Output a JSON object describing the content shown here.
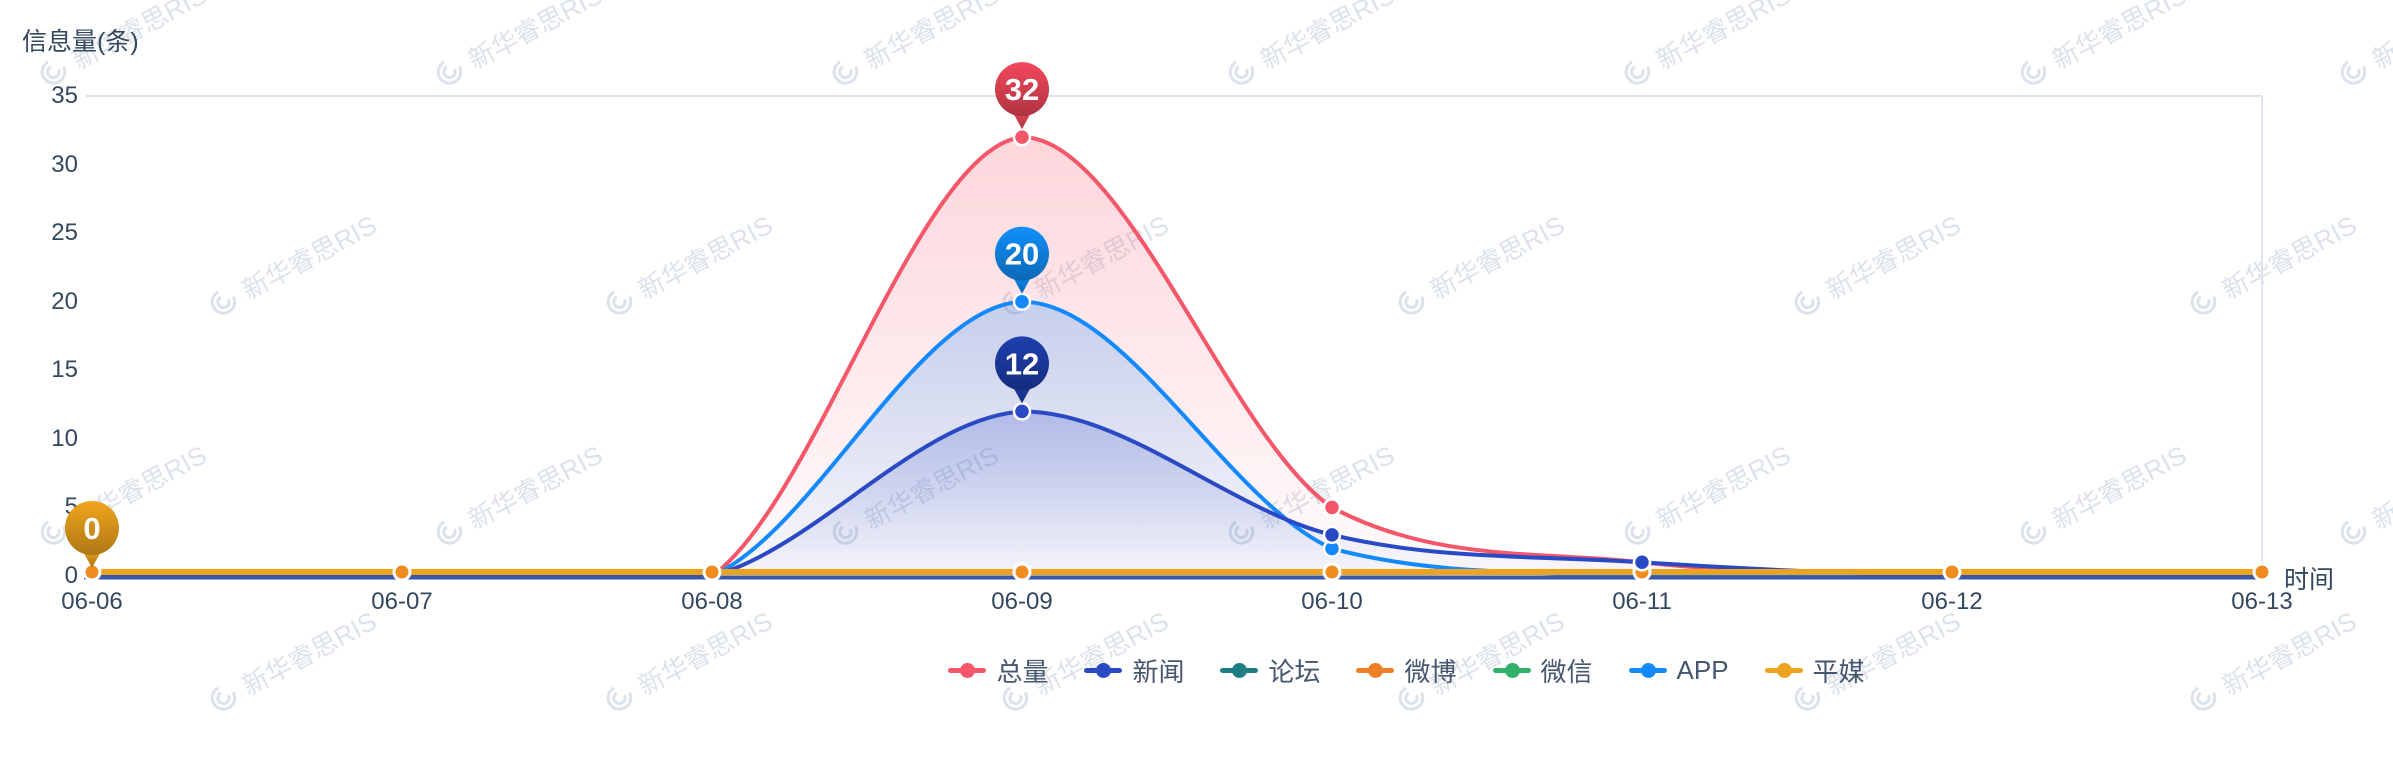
{
  "chart_data": {
    "type": "line",
    "title": "",
    "ylabel": "信息量(条)",
    "xlabel": "时间",
    "categories": [
      "06-06",
      "06-07",
      "06-08",
      "06-09",
      "06-10",
      "06-11",
      "06-12",
      "06-13"
    ],
    "ylim": [
      0,
      35
    ],
    "yticks": [
      0,
      5,
      10,
      15,
      20,
      25,
      30,
      35
    ],
    "grid": false,
    "smooth": true,
    "legend_position": "bottom",
    "series": [
      {
        "name": "总量",
        "color": "#f4566a",
        "area": true,
        "values": [
          0,
          0,
          0,
          32,
          5,
          1,
          0,
          0
        ]
      },
      {
        "name": "新闻",
        "color": "#2a49c4",
        "area": true,
        "values": [
          0,
          0,
          0,
          12,
          3,
          1,
          0,
          0
        ]
      },
      {
        "name": "论坛",
        "color": "#1d7e83",
        "area": false,
        "values": [
          0,
          0,
          0,
          0,
          0,
          0,
          0,
          0
        ]
      },
      {
        "name": "微博",
        "color": "#ee7f24",
        "area": false,
        "values": [
          0,
          0,
          0,
          0,
          0,
          0,
          0,
          0
        ]
      },
      {
        "name": "微信",
        "color": "#32b16c",
        "area": false,
        "values": [
          0,
          0,
          0,
          0,
          0,
          0,
          0,
          0
        ]
      },
      {
        "name": "APP",
        "color": "#1389fb",
        "area": true,
        "values": [
          0,
          0,
          0,
          20,
          2,
          0,
          0,
          0
        ]
      },
      {
        "name": "平媒",
        "color": "#eda31f",
        "area": false,
        "values": [
          0,
          0,
          0,
          0,
          0,
          0,
          0,
          0
        ]
      }
    ],
    "point_labels": [
      {
        "label": "32",
        "category": "06-09",
        "value": 32,
        "color": "#f3485c"
      },
      {
        "label": "20",
        "category": "06-09",
        "value": 20,
        "color": "#1090fb"
      },
      {
        "label": "12",
        "category": "06-09",
        "value": 12,
        "color": "#1e3fae"
      },
      {
        "label": "0",
        "category": "06-06",
        "value": 0,
        "color": "#f2a51d"
      }
    ]
  },
  "axis_colors": {
    "x_axis_line": "#3a57a8",
    "plot_border": "#dde4f0",
    "zero_dot": "#ef8c1f"
  },
  "watermark": {
    "text": "新华睿思RIS"
  }
}
